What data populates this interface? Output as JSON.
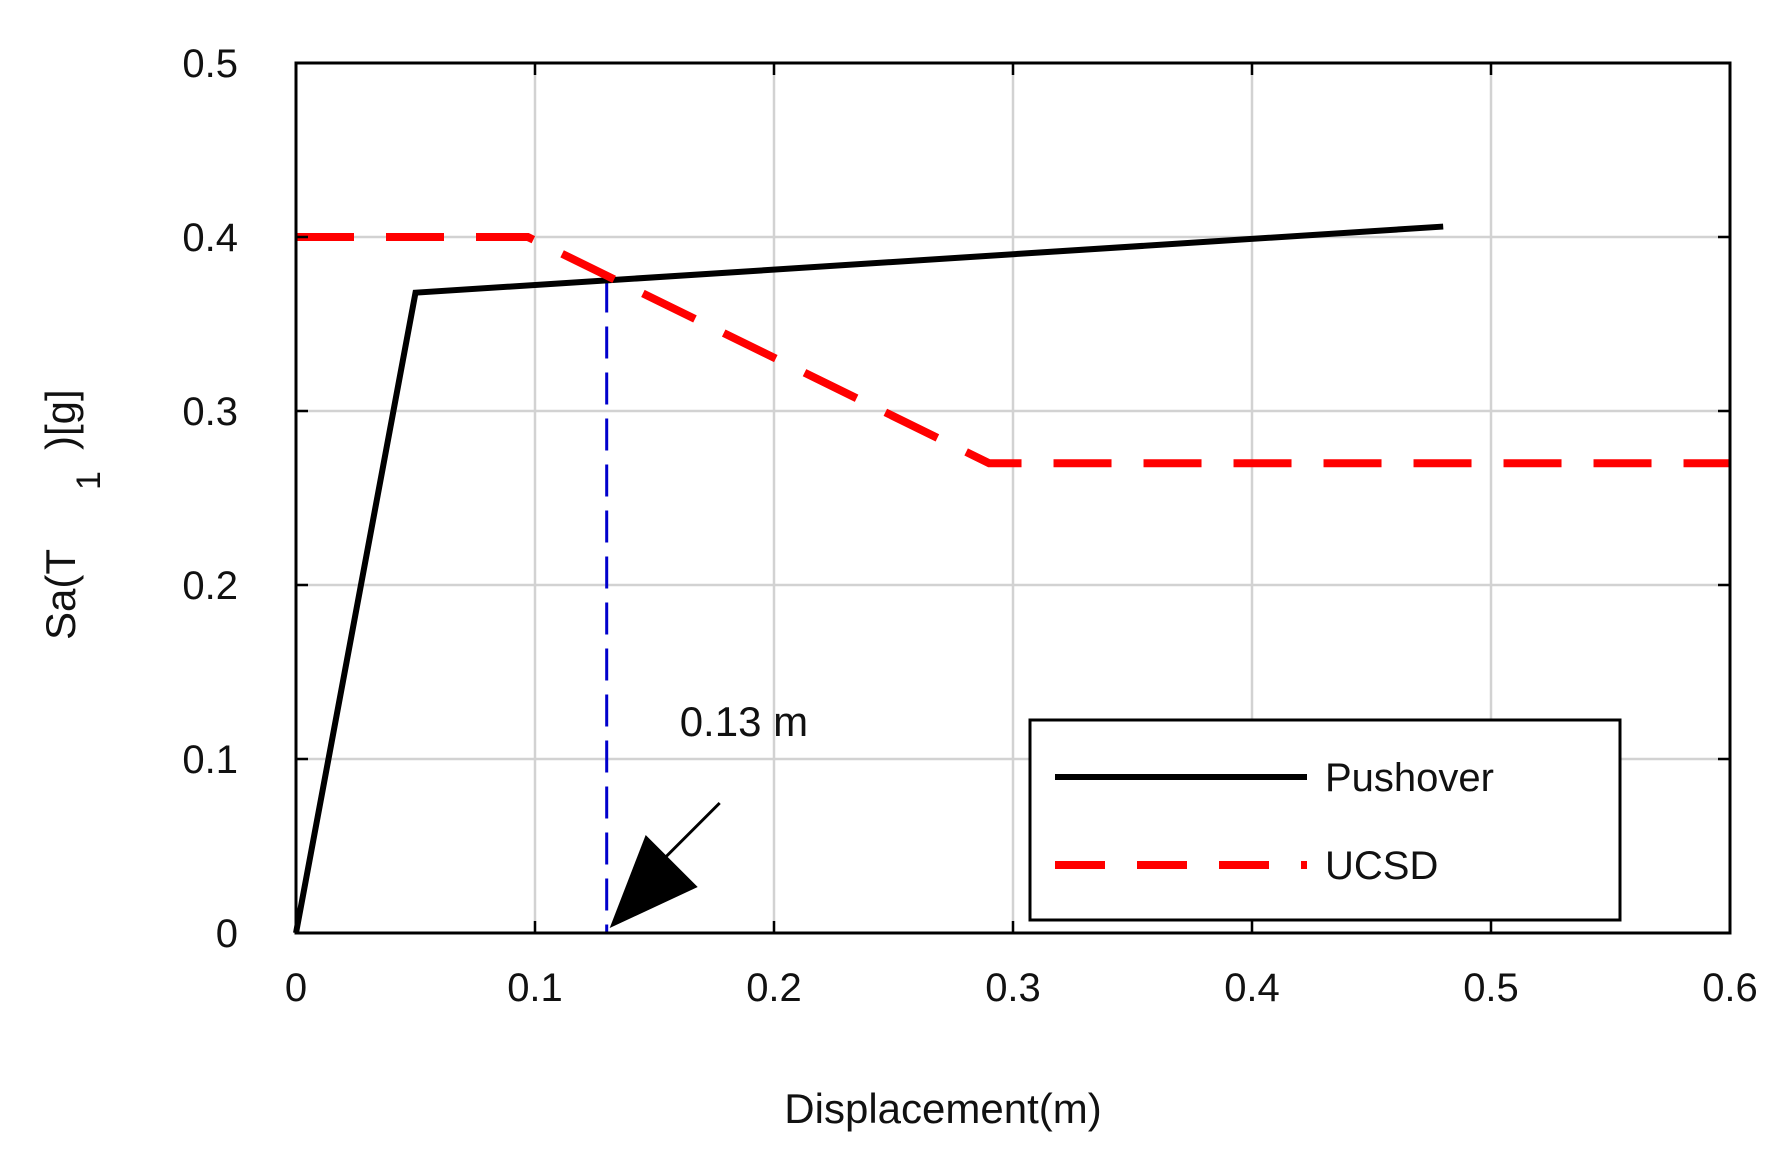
{
  "chart_data": {
    "type": "line",
    "title": "",
    "xlabel": "Displacement(m)",
    "ylabel": {
      "main": "Sa(T",
      "subscript": "1",
      "tail": ")[g]"
    },
    "xlim": [
      0,
      0.6
    ],
    "ylim": [
      0,
      0.5
    ],
    "xticks": [
      0,
      0.1,
      0.2,
      0.3,
      0.4,
      0.5,
      0.6
    ],
    "xtick_labels": [
      "0",
      "0.1",
      "0.2",
      "0.3",
      "0.4",
      "0.5",
      "0.6"
    ],
    "yticks": [
      0,
      0.1,
      0.2,
      0.3,
      0.4,
      0.5
    ],
    "ytick_labels": [
      "0",
      "0.1",
      "0.2",
      "0.3",
      "0.4",
      "0.5"
    ],
    "grid": true,
    "legend_position": "bottom-right",
    "series": [
      {
        "name": "Pushover",
        "color": "#000000",
        "style": "solid",
        "x": [
          0,
          0.05,
          0.48
        ],
        "y": [
          0,
          0.368,
          0.406
        ]
      },
      {
        "name": "UCSD",
        "color": "#ff0000",
        "style": "dashed",
        "x": [
          0,
          0.097,
          0.29,
          0.6
        ],
        "y": [
          0.4,
          0.4,
          0.27,
          0.27
        ]
      }
    ],
    "reference_line": {
      "x": 0.13,
      "y_top": 0.375,
      "color": "#0000cc",
      "style": "dashed"
    },
    "annotation": {
      "text": "0.13 m",
      "x": 0.13,
      "y": 0.0
    }
  }
}
